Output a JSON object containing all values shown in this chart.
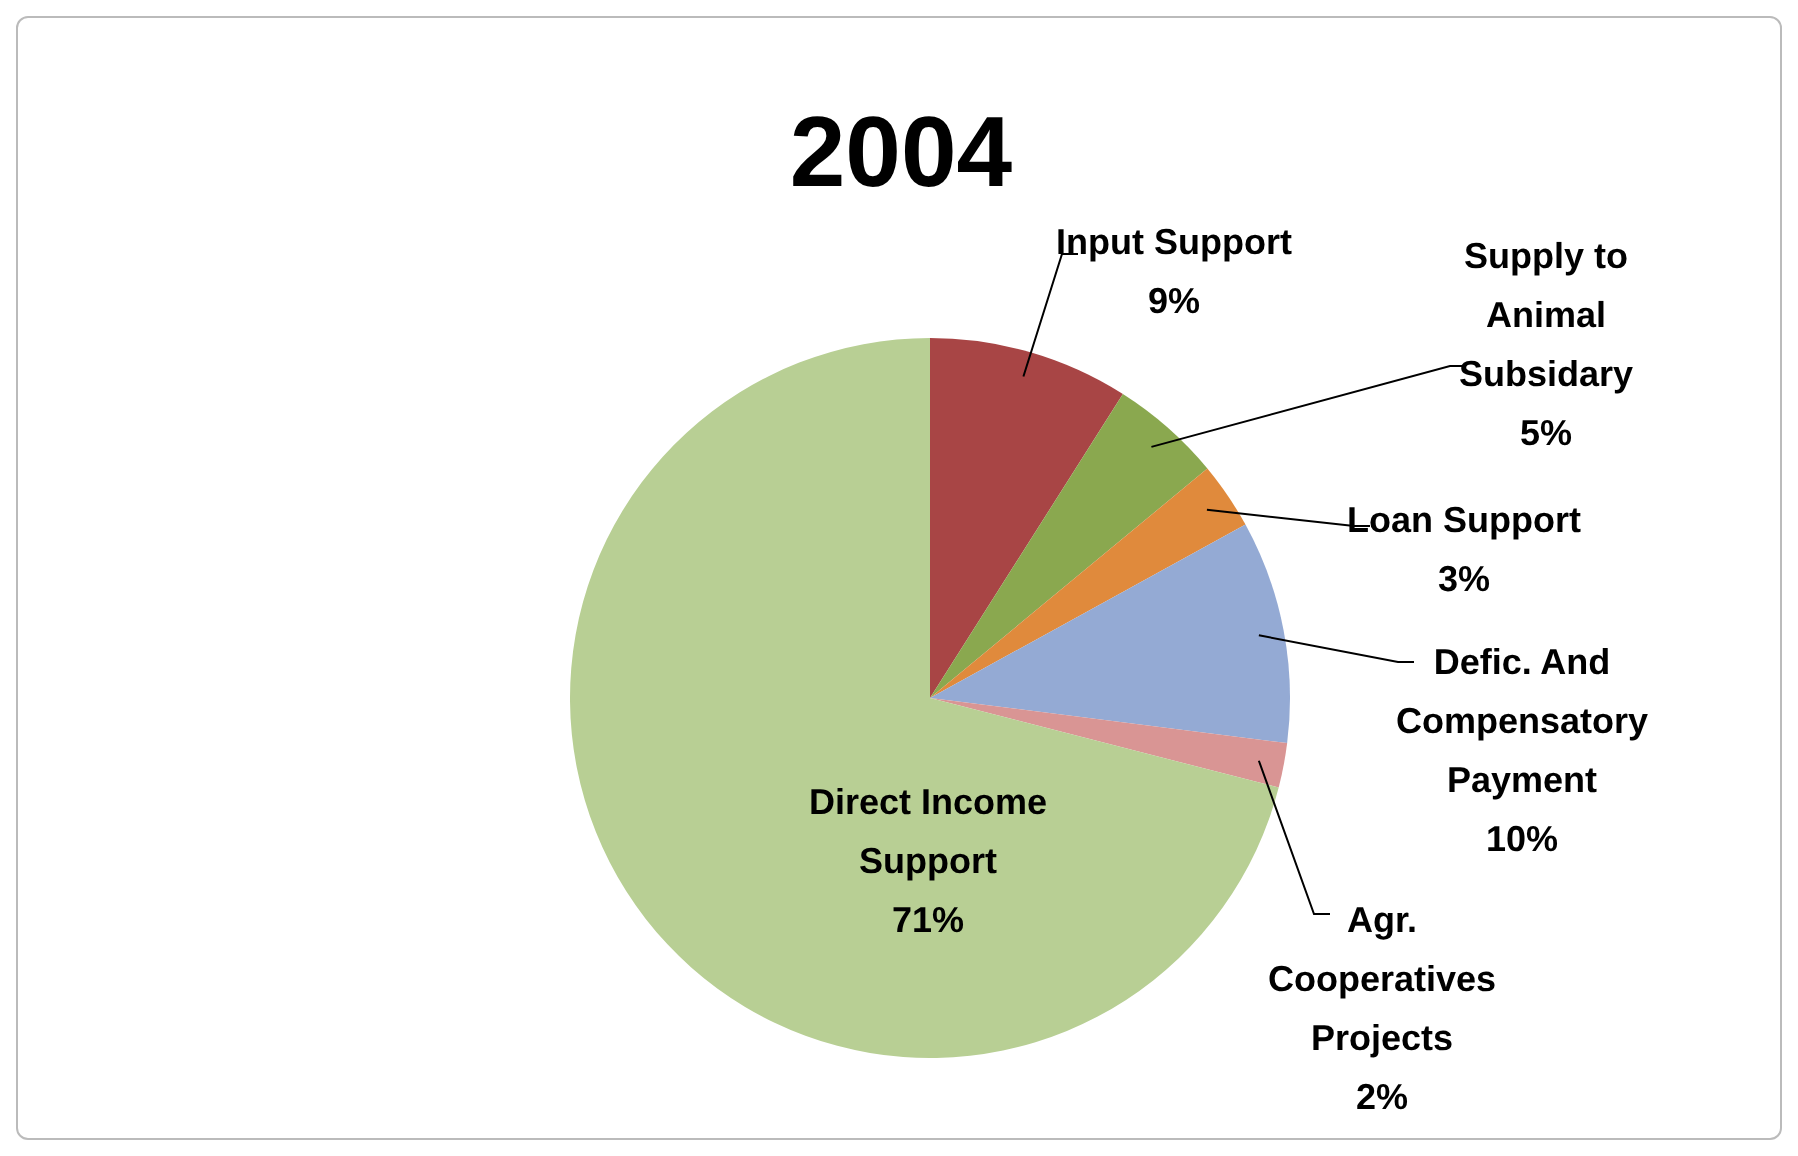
{
  "chart_data": {
    "type": "pie",
    "title": "2004",
    "categories": [
      "Input Support",
      "Supply to Animal Subsidary",
      "Loan Support",
      "Defic. And Compensatory Payment",
      "Agr. Cooperatives Projects",
      "Direct Income Support"
    ],
    "values": [
      9,
      5,
      3,
      10,
      2,
      71
    ],
    "value_labels": [
      "9%",
      "5%",
      "3%",
      "10%",
      "2%",
      "71%"
    ],
    "colors": [
      "#a84545",
      "#8aa84f",
      "#e08a3c",
      "#94aad4",
      "#d99594",
      "#b8cf94"
    ],
    "legend": false
  }
}
